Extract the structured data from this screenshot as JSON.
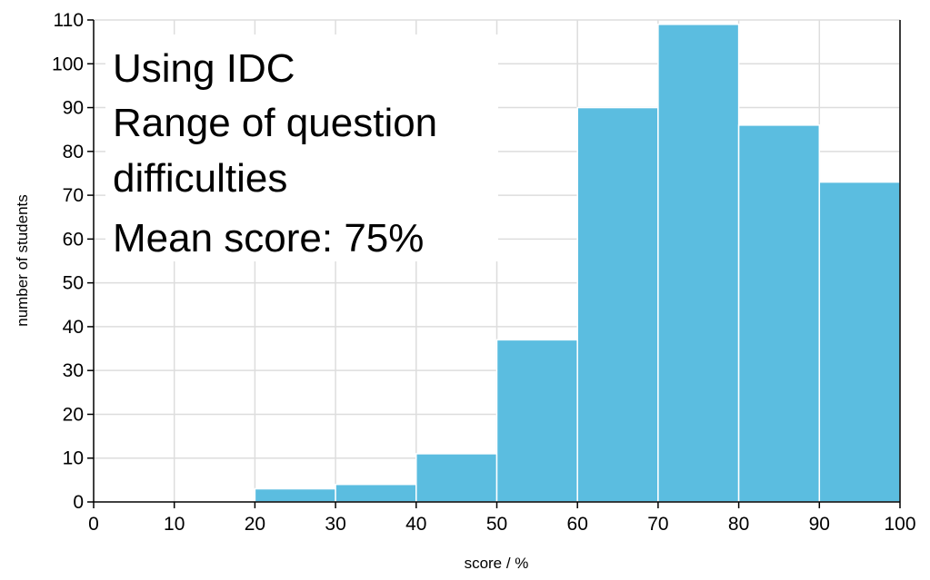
{
  "chart_data": {
    "type": "bar",
    "categories": [
      "0-10",
      "10-20",
      "20-30",
      "30-40",
      "40-50",
      "50-60",
      "60-70",
      "70-80",
      "80-90",
      "90-100"
    ],
    "bin_edges": [
      0,
      10,
      20,
      30,
      40,
      50,
      60,
      70,
      80,
      90,
      100
    ],
    "values": [
      0,
      0,
      3,
      4,
      11,
      37,
      90,
      109,
      86,
      73
    ],
    "xlabel": "score / %",
    "ylabel": "number of students",
    "xlim": [
      0,
      100
    ],
    "ylim": [
      0,
      110
    ],
    "xticks": [
      0,
      10,
      20,
      30,
      40,
      50,
      60,
      70,
      80,
      90,
      100
    ],
    "yticks": [
      0,
      10,
      20,
      30,
      40,
      50,
      60,
      70,
      80,
      90,
      100,
      110
    ],
    "grid": true,
    "annotation_lines": [
      "Using IDC",
      "Range of question",
      "difficulties",
      "Mean score: 75%"
    ],
    "bar_color": "#5bbde0",
    "grid_color": "#dddddd"
  }
}
